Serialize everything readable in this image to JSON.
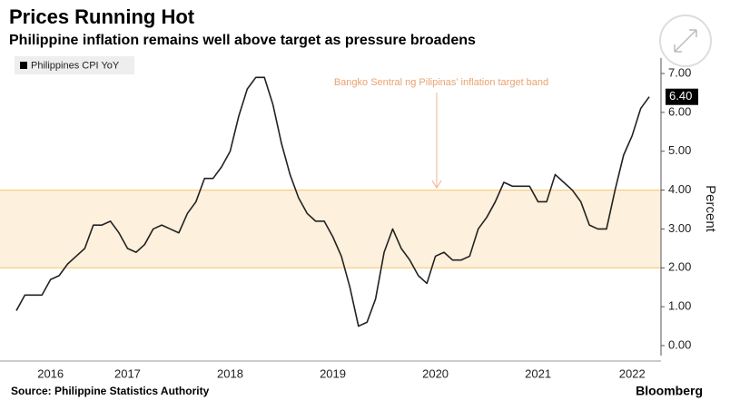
{
  "chart_data": {
    "type": "line",
    "title": "Prices Running Hot",
    "subtitle": "Philippine inflation remains well above target as pressure broadens",
    "y_axis_label": "Percent",
    "source": "Source: Philippine Statistics Authority",
    "brand": "Bloomberg",
    "categories": [
      null,
      null,
      null,
      null,
      "2016",
      null,
      null,
      null,
      null,
      null,
      null,
      null,
      null,
      "2017",
      null,
      null,
      null,
      null,
      null,
      null,
      null,
      null,
      null,
      null,
      null,
      "2018",
      null,
      null,
      null,
      null,
      null,
      null,
      null,
      null,
      null,
      null,
      null,
      "2019",
      null,
      null,
      null,
      null,
      null,
      null,
      null,
      null,
      null,
      null,
      null,
      "2020",
      null,
      null,
      null,
      null,
      null,
      null,
      null,
      null,
      null,
      null,
      null,
      "2021",
      null,
      null,
      null,
      null,
      null,
      null,
      null,
      null,
      null,
      null,
      "2022",
      null,
      null
    ],
    "series": [
      {
        "name": "Philippines CPI YoY",
        "color": "#222222",
        "values": [
          0.9,
          1.3,
          1.3,
          1.3,
          1.7,
          1.8,
          2.1,
          2.3,
          2.5,
          3.1,
          3.1,
          3.2,
          2.9,
          2.5,
          2.4,
          2.6,
          3.0,
          3.1,
          3.0,
          2.9,
          3.4,
          3.7,
          4.3,
          4.3,
          4.6,
          5.0,
          5.9,
          6.6,
          6.9,
          6.9,
          6.2,
          5.2,
          4.4,
          3.8,
          3.4,
          3.2,
          3.2,
          2.8,
          2.3,
          1.5,
          0.5,
          0.6,
          1.2,
          2.4,
          3.0,
          2.5,
          2.2,
          1.8,
          1.6,
          2.3,
          2.4,
          2.2,
          2.2,
          2.3,
          3.0,
          3.3,
          3.7,
          4.2,
          4.1,
          4.1,
          4.1,
          3.7,
          3.7,
          4.4,
          4.2,
          4.0,
          3.7,
          3.1,
          3.0,
          3.0,
          4.0,
          4.9,
          5.4,
          6.1,
          6.4
        ],
        "value_labels": [
          null,
          null,
          null,
          null,
          null,
          null,
          null,
          null,
          null,
          null,
          null,
          null,
          null,
          null,
          null,
          null,
          null,
          null,
          null,
          null,
          null,
          null,
          null,
          null,
          null,
          null,
          null,
          null,
          null,
          null,
          null,
          null,
          null,
          null,
          null,
          null,
          null,
          null,
          null,
          null,
          null,
          null,
          null,
          null,
          null,
          null,
          null,
          null,
          null,
          null,
          null,
          null,
          null,
          null,
          null,
          null,
          null,
          null,
          null,
          null,
          null,
          null,
          null,
          null,
          null,
          null,
          null,
          null,
          null,
          null,
          null,
          null,
          null,
          null,
          "6.40"
        ]
      }
    ],
    "target_band": {
      "range": [
        2,
        4
      ],
      "color": "#fdf0dc",
      "edge_color": "#f4c66a",
      "label": "Bangko Sentral ng Pilipinas' inflation target band"
    },
    "ylim": [
      0,
      7
    ],
    "yticks": [
      {
        "value": 0,
        "label": "0.00"
      },
      {
        "value": 1,
        "label": "1.00"
      },
      {
        "value": 2,
        "label": "2.00"
      },
      {
        "value": 3,
        "label": "3.00"
      },
      {
        "value": 4,
        "label": "4.00"
      },
      {
        "value": 5,
        "label": "5.00"
      },
      {
        "value": 6,
        "label": "6.00"
      },
      {
        "value": 7,
        "label": "7.00"
      }
    ]
  }
}
